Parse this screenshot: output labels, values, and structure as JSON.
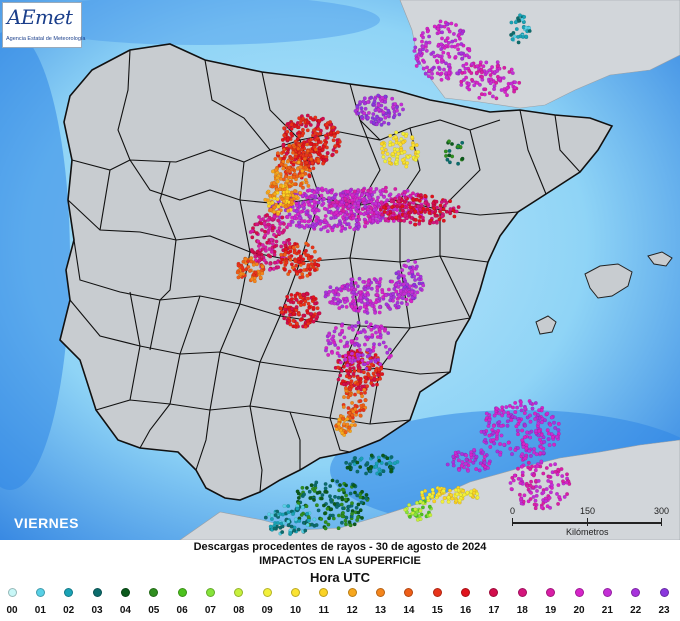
{
  "logo": {
    "text": "AEmet",
    "subtitle": "Agencia Estatal de Meteorología"
  },
  "map": {
    "day_label": "VIERNES",
    "scale": {
      "ticks": [
        "0",
        "150",
        "300"
      ],
      "unit": "Kilómetros"
    },
    "colors": {
      "sea_deep": "#2f86e6",
      "sea_shallow": "#9fdcf7",
      "land_spain": "#c8ccd0",
      "land_other": "#d2d6da",
      "borders": "#111111"
    }
  },
  "caption": {
    "line1": "Descargas procedentes de rayos - 30 de agosto de 2024",
    "line2": "IMPACTOS EN LA SUPERFICIE",
    "line3": "Hora UTC"
  },
  "legend": [
    {
      "label": "00",
      "color": "#c8f7f7"
    },
    {
      "label": "01",
      "color": "#58d0e6"
    },
    {
      "label": "02",
      "color": "#1aa3b6"
    },
    {
      "label": "03",
      "color": "#0c6c6c"
    },
    {
      "label": "04",
      "color": "#0b5a1c"
    },
    {
      "label": "05",
      "color": "#2f8e1f"
    },
    {
      "label": "06",
      "color": "#4cc21e"
    },
    {
      "label": "07",
      "color": "#86e33a"
    },
    {
      "label": "08",
      "color": "#c6f03c"
    },
    {
      "label": "09",
      "color": "#f2f03a"
    },
    {
      "label": "10",
      "color": "#fbe332"
    },
    {
      "label": "11",
      "color": "#fbd325"
    },
    {
      "label": "12",
      "color": "#f7a71e"
    },
    {
      "label": "13",
      "color": "#f4851c"
    },
    {
      "label": "14",
      "color": "#ee5e17"
    },
    {
      "label": "15",
      "color": "#e8331a"
    },
    {
      "label": "16",
      "color": "#e0141d"
    },
    {
      "label": "17",
      "color": "#d20d4c"
    },
    {
      "label": "18",
      "color": "#d4157c"
    },
    {
      "label": "19",
      "color": "#d81ea6"
    },
    {
      "label": "20",
      "color": "#d624c9"
    },
    {
      "label": "21",
      "color": "#c42ed6"
    },
    {
      "label": "22",
      "color": "#a733dc"
    },
    {
      "label": "23",
      "color": "#8a37dd"
    }
  ]
}
